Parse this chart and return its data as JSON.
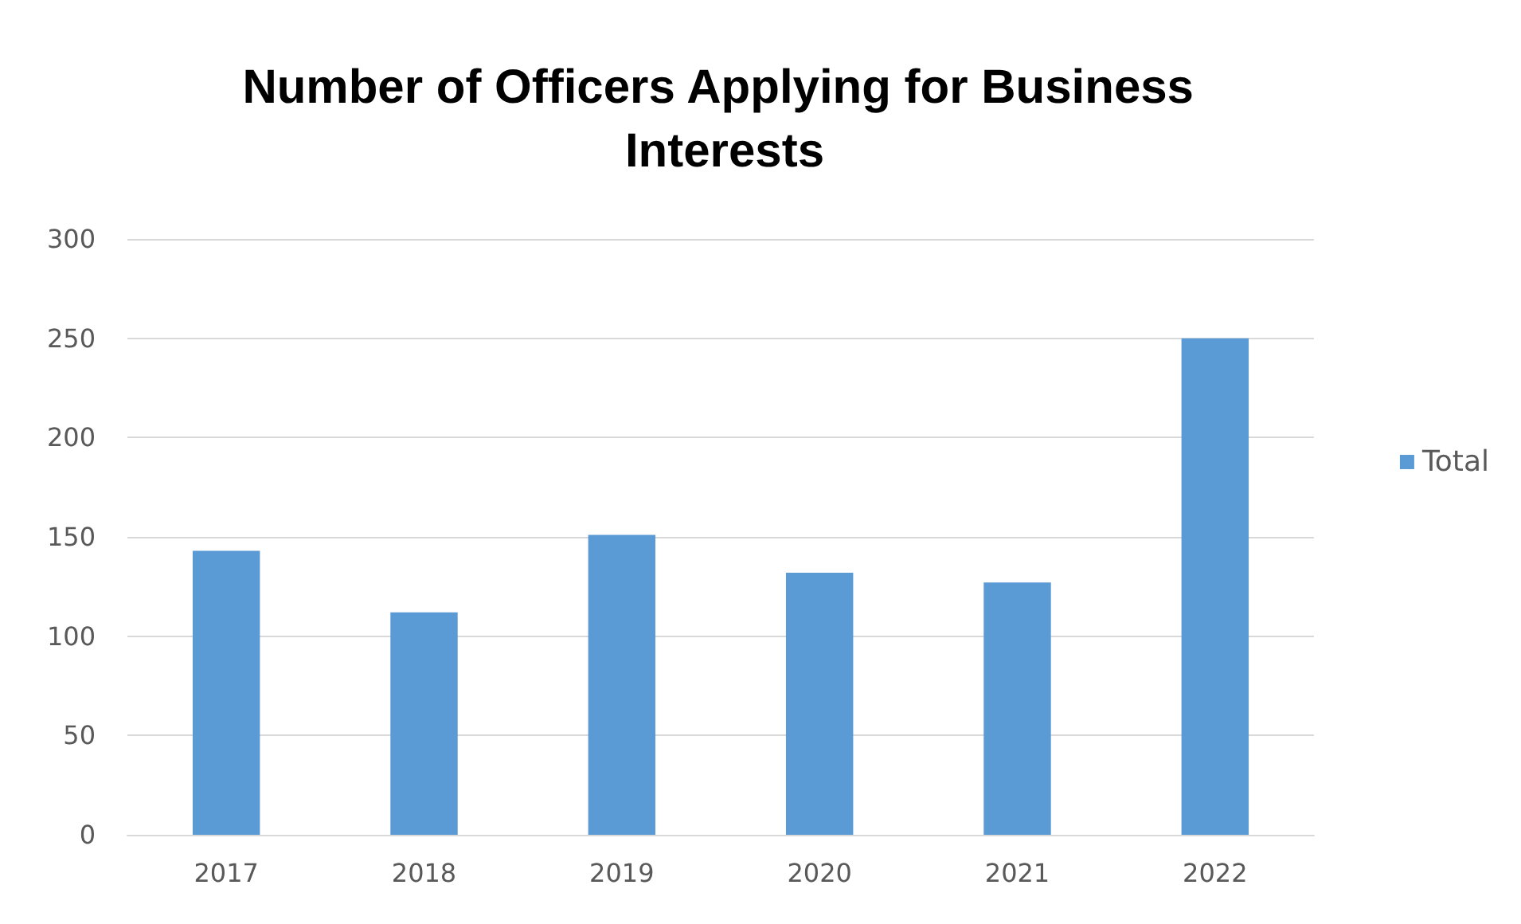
{
  "chart_data": {
    "type": "bar",
    "title": "Number of Officers Applying for Business Interests",
    "categories": [
      "2017",
      "2018",
      "2019",
      "2020",
      "2021",
      "2022"
    ],
    "series": [
      {
        "name": "Total",
        "color": "#5b9bd5",
        "values": [
          143,
          112,
          151,
          132,
          127,
          250
        ]
      }
    ],
    "ylim": [
      0,
      300
    ],
    "yticks": [
      0,
      50,
      100,
      150,
      200,
      250,
      300
    ],
    "grid": "y",
    "legend": "right"
  }
}
